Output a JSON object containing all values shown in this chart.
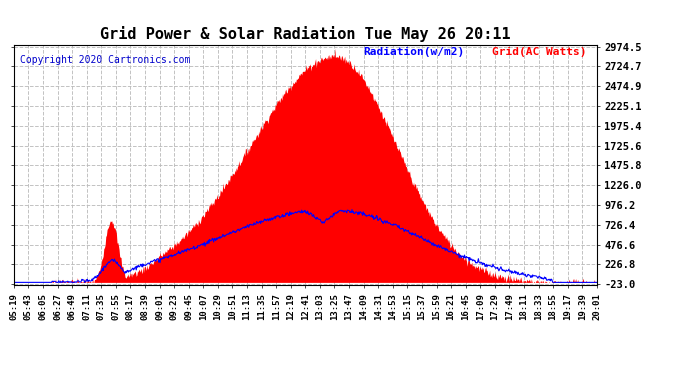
{
  "title": "Grid Power & Solar Radiation Tue May 26 20:11",
  "copyright": "Copyright 2020 Cartronics.com",
  "legend_radiation": "Radiation(w/m2)",
  "legend_grid": "Grid(AC Watts)",
  "yticks": [
    2974.5,
    2724.7,
    2474.9,
    2225.1,
    1975.4,
    1725.6,
    1475.8,
    1226.0,
    976.2,
    726.4,
    476.6,
    226.8,
    -23.0
  ],
  "ymin": -23.0,
  "ymax": 2974.5,
  "background_color": "#ffffff",
  "plot_bg_color": "#ffffff",
  "grid_color": "#bbbbbb",
  "fill_color": "#ff0000",
  "line_color": "#0000ff",
  "title_color": "#000000",
  "copyright_color": "#0000cc",
  "legend_radiation_color": "#0000ff",
  "legend_grid_color": "#ff0000",
  "xtick_labels": [
    "05:19",
    "05:43",
    "06:05",
    "06:27",
    "06:49",
    "07:11",
    "07:35",
    "07:55",
    "08:17",
    "08:39",
    "09:01",
    "09:23",
    "09:45",
    "10:07",
    "10:29",
    "10:51",
    "11:13",
    "11:35",
    "11:57",
    "12:19",
    "12:41",
    "13:03",
    "13:25",
    "13:47",
    "14:09",
    "14:31",
    "14:53",
    "15:15",
    "15:37",
    "15:59",
    "16:21",
    "16:45",
    "17:09",
    "17:29",
    "17:49",
    "18:11",
    "18:33",
    "18:55",
    "19:17",
    "19:39",
    "20:01"
  ]
}
